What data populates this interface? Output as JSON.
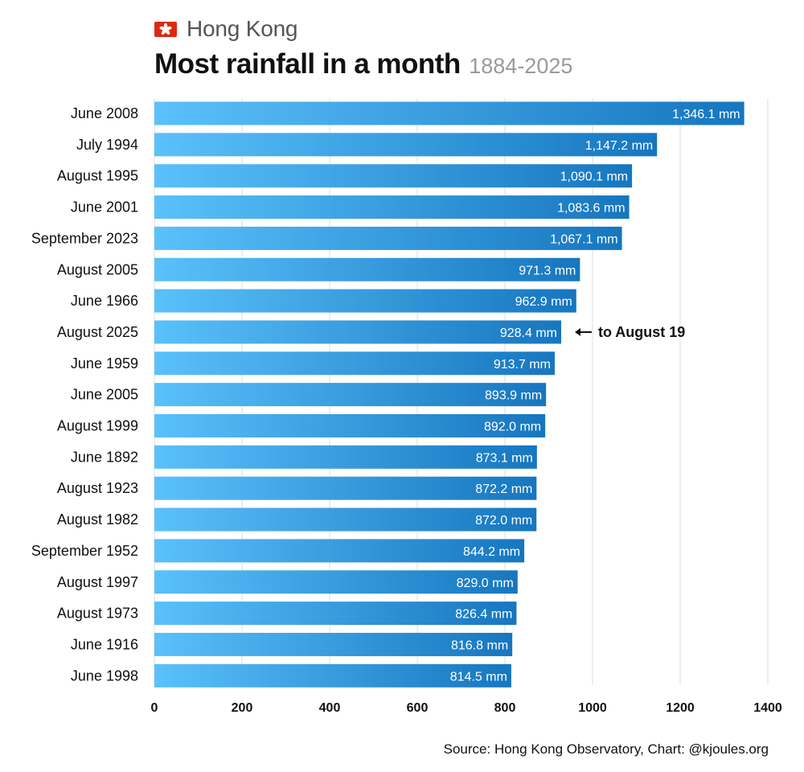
{
  "header": {
    "region": "Hong Kong",
    "title": "Most rainfall in a month",
    "subtitle": "1884-2025"
  },
  "chart_data": {
    "type": "bar",
    "orientation": "horizontal",
    "title": "Most rainfall in a month",
    "subtitle": "1884-2025",
    "xlabel": "",
    "ylabel": "",
    "xlim": [
      0,
      1400
    ],
    "x_ticks": [
      0,
      200,
      400,
      600,
      800,
      1000,
      1200,
      1400
    ],
    "grid": "vertical",
    "categories": [
      "June 2008",
      "July 1994",
      "August 1995",
      "June 2001",
      "September 2023",
      "August 2005",
      "June 1966",
      "August 2025",
      "June 1959",
      "June 2005",
      "August 1999",
      "June 1892",
      "August 1923",
      "August 1982",
      "September 1952",
      "August 1997",
      "August 1973",
      "June 1916",
      "June 1998"
    ],
    "values": [
      1346.1,
      1147.2,
      1090.1,
      1083.6,
      1067.1,
      971.3,
      962.9,
      928.4,
      913.7,
      893.9,
      892.0,
      873.1,
      872.2,
      872.0,
      844.2,
      829.0,
      826.4,
      816.8,
      814.5
    ],
    "data_labels": [
      "1,346.1 mm",
      "1,147.2 mm",
      "1,090.1 mm",
      "1,083.6 mm",
      "1,067.1 mm",
      "971.3 mm",
      "962.9 mm",
      "928.4 mm",
      "913.7 mm",
      "893.9 mm",
      "892.0 mm",
      "873.1 mm",
      "872.2 mm",
      "872.0 mm",
      "844.2 mm",
      "829.0 mm",
      "826.4 mm",
      "816.8 mm",
      "814.5 mm"
    ],
    "annotations": [
      {
        "category": "August 2025",
        "text": "to August 19",
        "arrow": "left"
      }
    ],
    "bar_gradient": [
      "#5ac1fb",
      "#1676bf"
    ],
    "colors": {
      "gridline": "#dddddd",
      "axis_text": "#111111",
      "bar_label": "#ffffff"
    }
  },
  "footer": {
    "source": "Source: Hong Kong Observatory, Chart: @kjoules.org"
  },
  "icons": {
    "flag": "hong-kong-flag-icon"
  }
}
